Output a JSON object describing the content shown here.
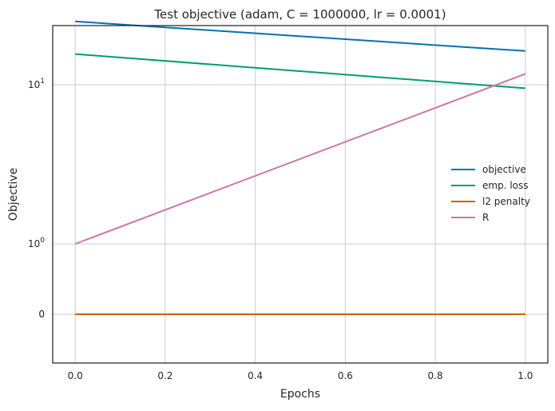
{
  "chart_data": {
    "type": "line",
    "title": "Test objective (adam, C = 1000000, lr = 0.0001)",
    "xlabel": "Epochs",
    "ylabel": "Objective",
    "yscale": "symlog",
    "grid": true,
    "legend_position": "center-right",
    "xlim": [
      -0.05,
      1.05
    ],
    "x_ticks": [
      {
        "value": 0.0,
        "label": "0.0"
      },
      {
        "value": 0.2,
        "label": "0.2"
      },
      {
        "value": 0.4,
        "label": "0.4"
      },
      {
        "value": 0.6,
        "label": "0.6"
      },
      {
        "value": 0.8,
        "label": "0.8"
      },
      {
        "value": 1.0,
        "label": "1.0"
      }
    ],
    "y_ticks": [
      {
        "value": 0,
        "base": "0",
        "exp": ""
      },
      {
        "value": 1,
        "base": "10",
        "exp": "0"
      },
      {
        "value": 10,
        "base": "10",
        "exp": "1"
      }
    ],
    "x": [
      0.0,
      1.0
    ],
    "series": [
      {
        "name": "objective",
        "color": "#0072b2",
        "values": [
          25.0,
          16.3
        ]
      },
      {
        "name": "emp. loss",
        "color": "#009e73",
        "values": [
          15.6,
          9.5
        ]
      },
      {
        "name": "l2 penalty",
        "color": "#d55e00",
        "values": [
          0.0,
          0.0
        ]
      },
      {
        "name": "R",
        "color": "#cc79a7",
        "values": [
          1.0,
          11.7
        ]
      }
    ]
  }
}
